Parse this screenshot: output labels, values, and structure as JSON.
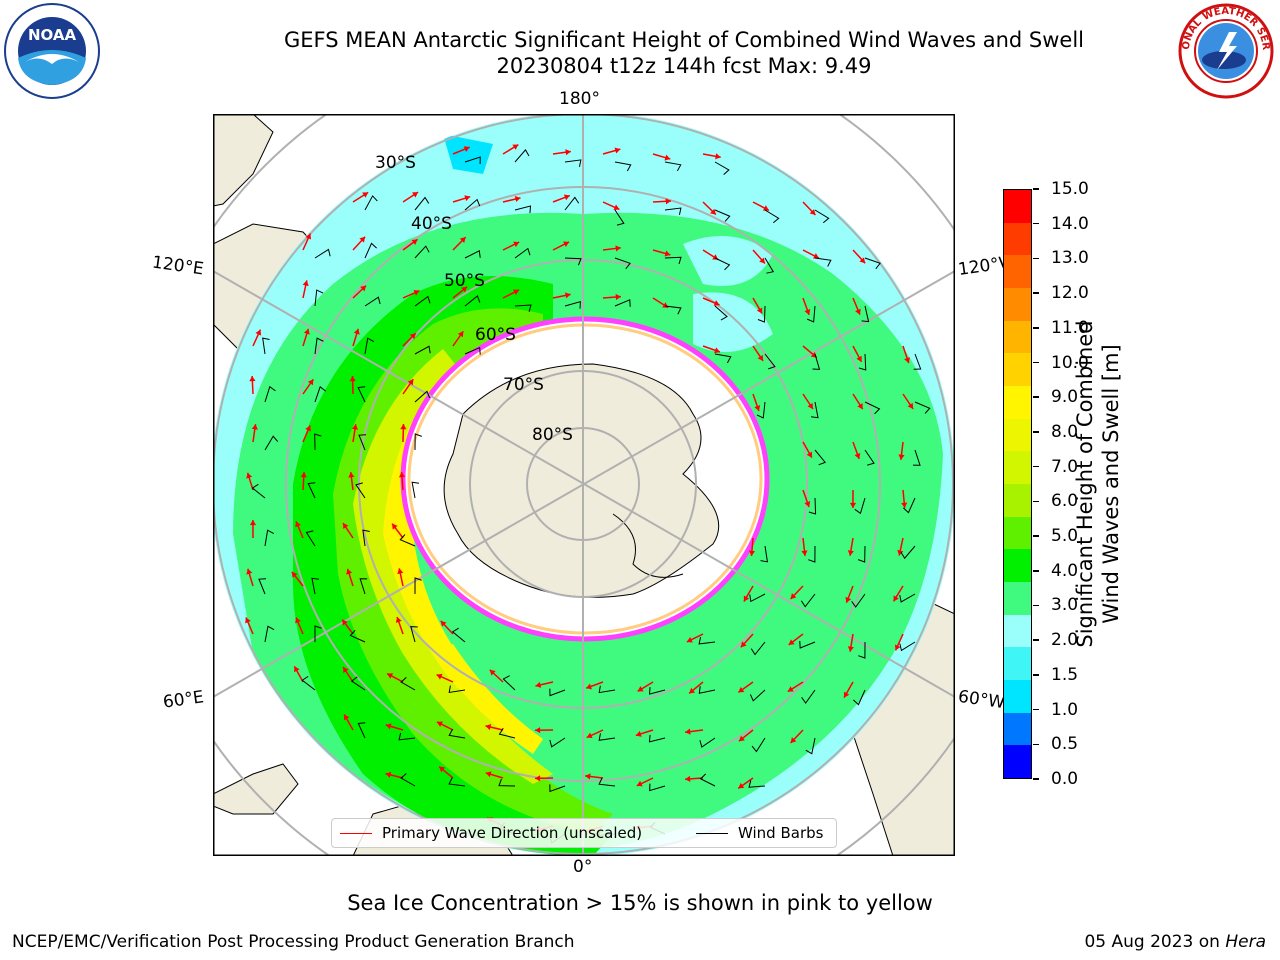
{
  "title": "GEFS MEAN Antarctic Significant Height of Combined Wind Waves and Swell",
  "subtitle": "20230804 t12z 144h fcst   Max: 9.49",
  "map": {
    "longitude_labels": {
      "top": "180°",
      "bottom": "0°",
      "left_upper": "120°E",
      "left_lower": "60°E",
      "right_upper": "120°W",
      "right_lower": "60°W"
    },
    "latitude_labels": [
      "30°S",
      "40°S",
      "50°S",
      "60°S",
      "70°S",
      "80°S"
    ],
    "projection": "south-polar-stereographic"
  },
  "legend": {
    "wave_label": "Primary Wave Direction (unscaled)",
    "wind_label": "Wind Barbs",
    "wave_color": "#ff0000",
    "wind_color": "#000000"
  },
  "colorbar": {
    "label_line1": "Significant Height of Combined",
    "label_line2": "Wind Waves and Swell [m]",
    "ticks": [
      "15.0",
      "14.0",
      "13.0",
      "12.0",
      "11.0",
      "10.0",
      "9.0",
      "8.0",
      "7.0",
      "6.0",
      "5.0",
      "4.0",
      "3.0",
      "2.0",
      "1.5",
      "1.0",
      "0.5",
      "0.0"
    ],
    "colors": [
      "#0000ff",
      "#0077ff",
      "#00e5ff",
      "#40f5f5",
      "#9afffb",
      "#40fa80",
      "#00f000",
      "#5ff000",
      "#a8f200",
      "#d2f500",
      "#eef500",
      "#fff500",
      "#ffd200",
      "#ffb400",
      "#ff8c00",
      "#ff6400",
      "#ff3c00",
      "#ff0000"
    ]
  },
  "caption": "Sea Ice Concentration > 15% is shown in pink to yellow",
  "footer": {
    "left": "NCEP/EMC/Verification Post Processing Product Generation Branch",
    "right_prefix": "05 Aug 2023 on ",
    "right_italic": "Hera"
  },
  "logos": {
    "left": "NOAA",
    "right": "NATIONAL WEATHER SERVICE"
  }
}
